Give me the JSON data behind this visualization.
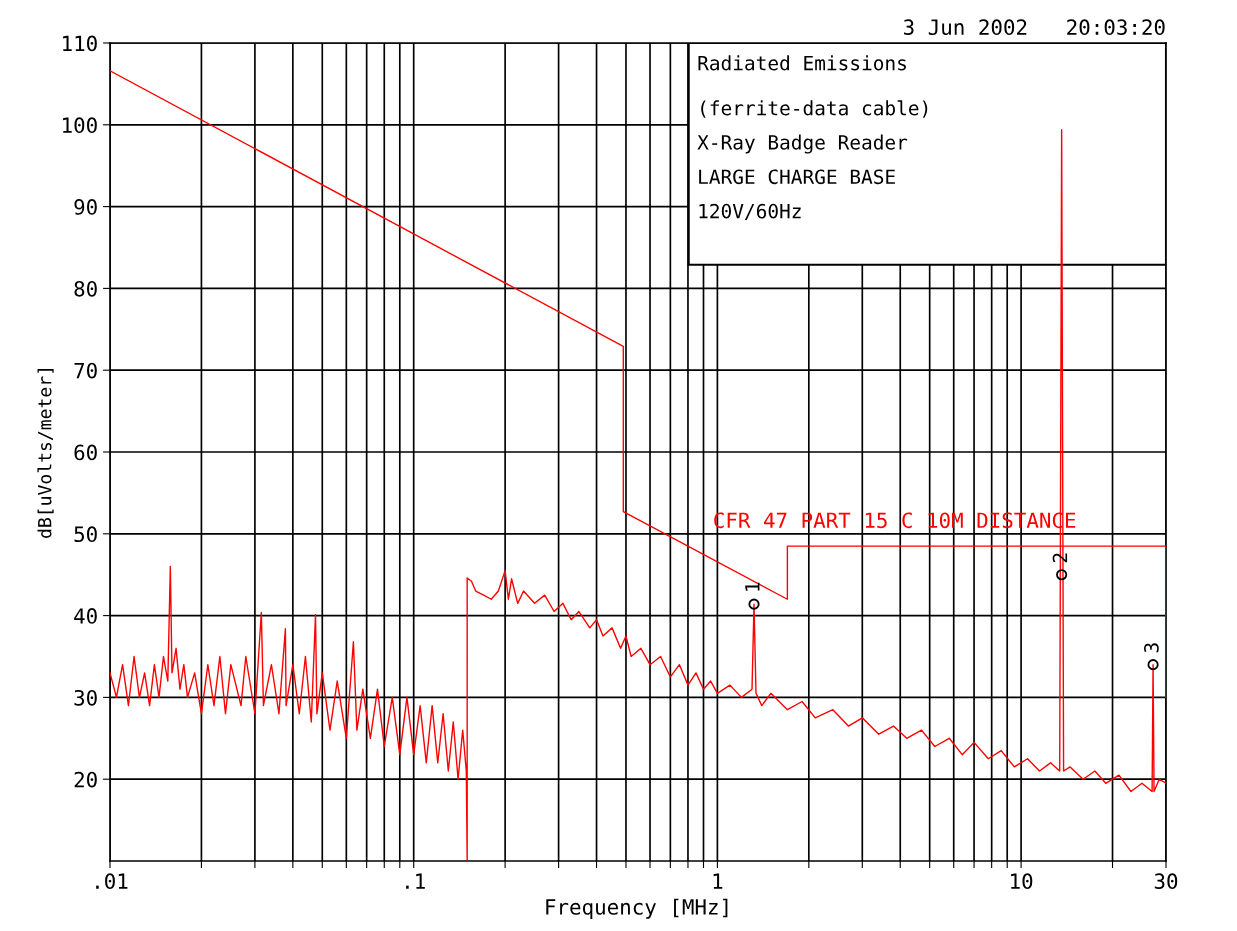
{
  "chart_data": {
    "type": "line",
    "subtitle": "3 Jun 2002   20:03:20",
    "xlabel": "Frequency [MHz]",
    "ylabel": "dB[uVolts/meter]",
    "log": "x",
    "xlim": [
      0.01,
      30
    ],
    "xticks": [
      {
        "value": 0.01,
        "label": ".01"
      },
      {
        "value": 0.02,
        "label": null
      },
      {
        "value": 0.03,
        "label": null
      },
      {
        "value": 0.04,
        "label": null
      },
      {
        "value": 0.05,
        "label": null
      },
      {
        "value": 0.06,
        "label": null
      },
      {
        "value": 0.07,
        "label": null
      },
      {
        "value": 0.08,
        "label": null
      },
      {
        "value": 0.09,
        "label": null
      },
      {
        "value": 0.1,
        "label": ".1"
      },
      {
        "value": 0.2,
        "label": null
      },
      {
        "value": 0.3,
        "label": null
      },
      {
        "value": 0.4,
        "label": null
      },
      {
        "value": 0.5,
        "label": null
      },
      {
        "value": 0.6,
        "label": null
      },
      {
        "value": 0.7,
        "label": null
      },
      {
        "value": 0.8,
        "label": null
      },
      {
        "value": 0.9,
        "label": null
      },
      {
        "value": 1,
        "label": "1"
      },
      {
        "value": 2,
        "label": null
      },
      {
        "value": 3,
        "label": null
      },
      {
        "value": 4,
        "label": null
      },
      {
        "value": 5,
        "label": null
      },
      {
        "value": 6,
        "label": null
      },
      {
        "value": 7,
        "label": null
      },
      {
        "value": 8,
        "label": null
      },
      {
        "value": 9,
        "label": null
      },
      {
        "value": 10,
        "label": "10"
      },
      {
        "value": 20,
        "label": null
      },
      {
        "value": 30,
        "label": "30"
      }
    ],
    "ylim": [
      10,
      110
    ],
    "yticks": [
      20,
      30,
      40,
      50,
      60,
      70,
      80,
      90,
      100,
      110
    ],
    "grid": true,
    "legend": false,
    "annotations": [
      "Radiated Emissions",
      "(ferrite-data cable)",
      "X-Ray Badge Reader",
      "LARGE CHARGE BASE",
      "120V/60Hz",
      {
        "text": "1",
        "x": 1.32,
        "y": 41.4
      },
      {
        "text": "2",
        "x": 13.6,
        "y": 45
      },
      {
        "text": "3",
        "x": 27.2,
        "y": 34
      }
    ],
    "series": [
      {
        "name": "CFR 47 PART 15 C 10M DISTANCE",
        "color": "#ff0000",
        "x": [
          0.01,
          0.49,
          0.49,
          1.7,
          1.7,
          30,
          30
        ],
        "values": [
          106.6,
          72.9,
          52.7,
          42.0,
          48.5,
          48.5,
          30
        ]
      },
      {
        "color": "#ff0000",
        "x": [
          0.01,
          0.0105,
          0.011,
          0.0115,
          0.012,
          0.0125,
          0.013,
          0.0135,
          0.014,
          0.0145,
          0.015,
          0.0155,
          0.0158,
          0.016,
          0.0165,
          0.017,
          0.0175,
          0.018,
          0.019,
          0.02,
          0.021,
          0.022,
          0.023,
          0.024,
          0.025,
          0.027,
          0.028,
          0.03,
          0.0315,
          0.032,
          0.034,
          0.036,
          0.0378,
          0.038,
          0.04,
          0.042,
          0.044,
          0.046,
          0.0475,
          0.048,
          0.05,
          0.053,
          0.056,
          0.06,
          0.0633,
          0.065,
          0.068,
          0.072,
          0.076,
          0.08,
          0.085,
          0.09,
          0.095,
          0.1,
          0.105,
          0.11,
          0.115,
          0.12,
          0.125,
          0.13,
          0.135,
          0.14,
          0.145,
          0.149,
          0.15,
          0.15,
          0.155,
          0.16,
          0.17,
          0.18,
          0.19,
          0.2,
          0.205,
          0.21,
          0.22,
          0.23,
          0.25,
          0.27,
          0.29,
          0.31,
          0.33,
          0.35,
          0.38,
          0.4,
          0.42,
          0.45,
          0.48,
          0.5,
          0.52,
          0.56,
          0.6,
          0.65,
          0.7,
          0.75,
          0.8,
          0.85,
          0.9,
          0.95,
          1.0,
          1.1,
          1.2,
          1.3,
          1.32,
          1.34,
          1.4,
          1.5,
          1.7,
          1.9,
          2.1,
          2.4,
          2.7,
          3.0,
          3.4,
          3.8,
          4.2,
          4.7,
          5.2,
          5.8,
          6.4,
          7,
          7.8,
          8.6,
          9.5,
          10.5,
          11.5,
          12.5,
          13.4,
          13.6,
          13.8,
          14.5,
          16,
          17.5,
          19,
          21,
          23,
          25,
          27,
          27.2,
          27.4,
          28.5,
          30
        ],
        "values": [
          33,
          30,
          34,
          29,
          35,
          30,
          33,
          29,
          34,
          30,
          35,
          32,
          46,
          33,
          36,
          31,
          34,
          30,
          33,
          28,
          34,
          29,
          35,
          28,
          34,
          29,
          35,
          28,
          40.4,
          29,
          34,
          28,
          38.4,
          29,
          34,
          28,
          35,
          27,
          40.1,
          28,
          33,
          26,
          32,
          25,
          36.8,
          26,
          31,
          25,
          31,
          24,
          30,
          23,
          30,
          23,
          29,
          22,
          29,
          22,
          28,
          21,
          27,
          20,
          26,
          21,
          10,
          44.6,
          44.2,
          43,
          42.5,
          42,
          43,
          45.5,
          42,
          44.5,
          41.5,
          43,
          41.5,
          42.5,
          40.5,
          41.5,
          39.5,
          40.5,
          38.5,
          39.5,
          37.5,
          38.5,
          36,
          37.5,
          35,
          36,
          34,
          35,
          32.5,
          34,
          31.5,
          33,
          31,
          32,
          30.5,
          31.5,
          30,
          31,
          41.4,
          30.5,
          29,
          30.5,
          28.5,
          29.5,
          27.5,
          28.5,
          26.5,
          27.5,
          25.5,
          26.5,
          25,
          26,
          24,
          25,
          23,
          24.5,
          22.5,
          23.5,
          21.5,
          22.5,
          21,
          22,
          21,
          99.4,
          21,
          21.5,
          20,
          21,
          19.5,
          20.5,
          18.5,
          19.5,
          18.5,
          34,
          18.5,
          20,
          19.5
        ]
      },
      {
        "color": "#000000",
        "type": "scatter",
        "marker": "circle",
        "x": [
          1.32,
          13.6,
          27.2
        ],
        "values": [
          41.4,
          45,
          34
        ]
      }
    ]
  }
}
